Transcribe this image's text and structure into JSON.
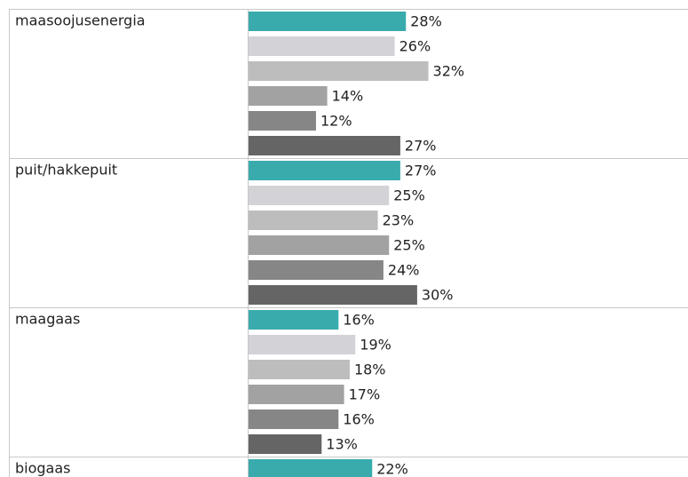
{
  "chart_data": {
    "type": "bar",
    "categories": [
      "maasoojusenergia",
      "puit/hakkepuit",
      "maagaas",
      "biogaas"
    ],
    "series": [
      {
        "color": "#39abac",
        "values": [
          28,
          27,
          16,
          22
        ],
        "value_labels": [
          "28%",
          "27%",
          "16%",
          "22%"
        ]
      },
      {
        "color": "#d3d2d7",
        "values": [
          26,
          25,
          19,
          null
        ],
        "value_labels": [
          "26%",
          "25%",
          "19%",
          null
        ]
      },
      {
        "color": "#bdbdbd",
        "values": [
          32,
          23,
          18,
          null
        ],
        "value_labels": [
          "32%",
          "23%",
          "18%",
          null
        ]
      },
      {
        "color": "#a2a2a2",
        "values": [
          14,
          25,
          17,
          null
        ],
        "value_labels": [
          "14%",
          "25%",
          "17%",
          null
        ]
      },
      {
        "color": "#868686",
        "values": [
          12,
          24,
          16,
          null
        ],
        "value_labels": [
          "12%",
          "24%",
          "16%",
          null
        ]
      },
      {
        "color": "#656565",
        "values": [
          27,
          30,
          13,
          null
        ],
        "value_labels": [
          "27%",
          "30%",
          "13%",
          null
        ]
      }
    ]
  }
}
